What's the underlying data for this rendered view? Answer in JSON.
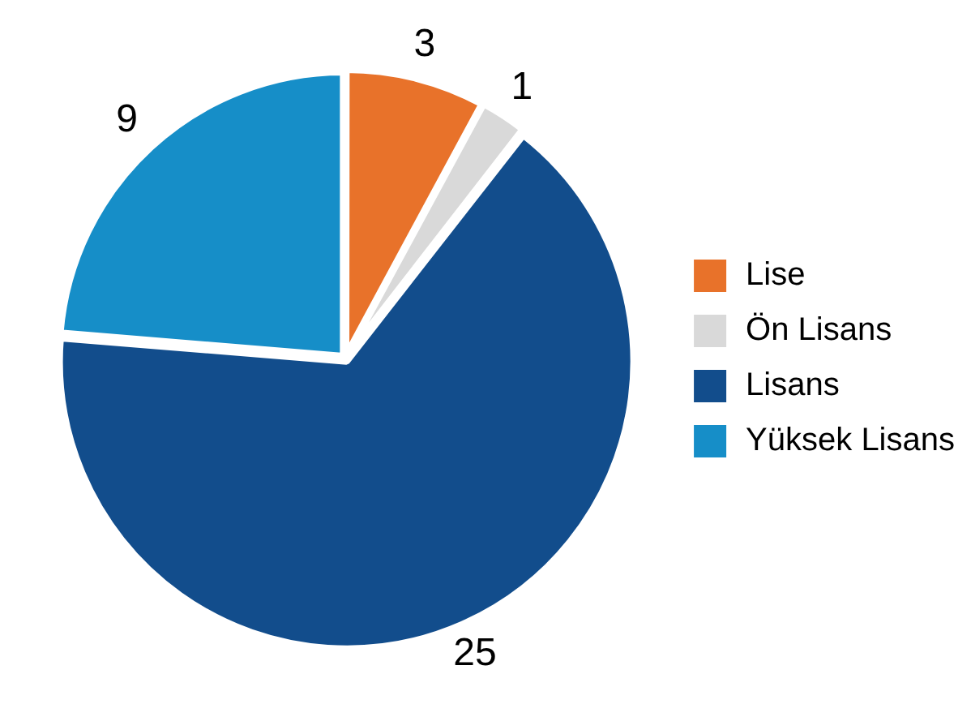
{
  "chart_data": {
    "type": "pie",
    "categories": [
      "Lise",
      "Ön Lisans",
      "Lisans",
      "Yüksek Lisans"
    ],
    "values": [
      3,
      1,
      25,
      9
    ],
    "colors": [
      "#e8722a",
      "#d9d9d9",
      "#124d8c",
      "#168ec8"
    ],
    "data_labels": true,
    "legend": "right"
  }
}
